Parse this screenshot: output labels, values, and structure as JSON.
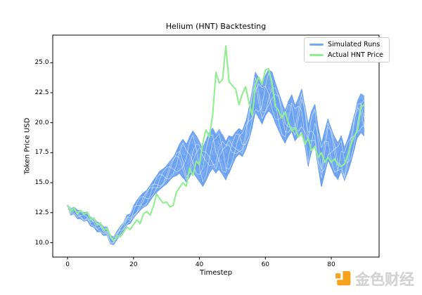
{
  "figure": {
    "title": "Helium (HNT) Backtesting",
    "xlabel": "Timestep",
    "ylabel": "Token Price USD"
  },
  "legend": {
    "items": [
      {
        "label": "Simulated Runs",
        "color": "#74a9f3"
      },
      {
        "label": "Actual HNT Price",
        "color": "#90ee90"
      }
    ]
  },
  "watermark": {
    "text": "金色财经",
    "text_color": "#d2d2d2",
    "logo_color": "#f6a21d"
  },
  "chart_data": {
    "type": "line",
    "title": "Helium (HNT) Backtesting",
    "xlabel": "Timestep",
    "ylabel": "Token Price USD",
    "grid": false,
    "legend_position": "upper right",
    "xlim": [
      -4.5,
      94.5
    ],
    "ylim": [
      8.8,
      27.3
    ],
    "x_ticks": [
      0,
      20,
      40,
      60,
      80
    ],
    "x_tick_labels": [
      "0",
      "20",
      "40",
      "60",
      "80"
    ],
    "y_ticks": [
      10.0,
      12.5,
      15.0,
      17.5,
      20.0,
      22.5,
      25.0
    ],
    "y_tick_labels": [
      "10.0",
      "12.5",
      "15.0",
      "17.5",
      "20.0",
      "22.5",
      "25.0"
    ],
    "x_start": 0,
    "x_step": 1,
    "series": [
      {
        "name": "Simulated Runs",
        "type": "band",
        "color": "#7bacf3",
        "line_color": "#68a0f1",
        "num_runs": 30,
        "lower": [
          13.05,
          12.3,
          12.4,
          12.0,
          12.0,
          11.8,
          11.85,
          11.4,
          11.3,
          10.9,
          10.9,
          10.6,
          10.65,
          9.9,
          9.85,
          10.3,
          10.7,
          10.95,
          11.5,
          11.6,
          12.05,
          12.4,
          12.7,
          12.9,
          13.1,
          13.5,
          13.9,
          14.2,
          14.45,
          14.7,
          14.9,
          15.2,
          15.5,
          15.6,
          15.8,
          15.4,
          15.0,
          15.5,
          15.9,
          15.5,
          15.1,
          14.7,
          15.2,
          15.8,
          16.2,
          15.8,
          16.1,
          15.7,
          15.2,
          15.8,
          16.5,
          17.1,
          17.4,
          17.2,
          17.8,
          18.6,
          19.6,
          20.8,
          20.4,
          19.9,
          20.6,
          21.0,
          20.6,
          20.0,
          19.4,
          18.8,
          18.3,
          18.9,
          19.3,
          18.5,
          18.9,
          19.3,
          18.2,
          16.4,
          17.5,
          18.2,
          16.4,
          14.7,
          15.8,
          16.9,
          16.3,
          15.6,
          15.2,
          15.9,
          15.1,
          15.9,
          16.8,
          17.8,
          18.8,
          19.2,
          18.9
        ],
        "upper": [
          13.2,
          12.85,
          12.95,
          12.7,
          12.65,
          12.5,
          12.55,
          12.1,
          12.0,
          11.7,
          11.6,
          11.3,
          11.3,
          10.6,
          10.45,
          10.95,
          11.35,
          11.65,
          12.3,
          12.45,
          13.1,
          13.5,
          13.9,
          14.15,
          14.35,
          14.75,
          15.15,
          15.55,
          15.95,
          16.15,
          16.4,
          16.75,
          17.1,
          17.6,
          18.2,
          18.6,
          18.2,
          18.8,
          19.3,
          18.9,
          18.4,
          17.9,
          18.5,
          19.2,
          19.6,
          19.1,
          19.5,
          19.0,
          18.4,
          18.9,
          18.8,
          19.2,
          19.5,
          19.3,
          20.1,
          21.2,
          22.6,
          24.2,
          23.8,
          23.2,
          23.9,
          24.4,
          24.2,
          23.3,
          22.5,
          21.7,
          21.1,
          21.8,
          22.3,
          21.4,
          22.0,
          22.8,
          21.4,
          19.8,
          20.9,
          21.5,
          19.6,
          18.2,
          19.3,
          20.3,
          19.6,
          18.8,
          18.3,
          18.9,
          17.9,
          18.6,
          19.5,
          20.6,
          21.8,
          22.4,
          22.2
        ]
      },
      {
        "name": "Actual HNT Price",
        "type": "line",
        "color": "#90ee90",
        "values": [
          13.1,
          12.6,
          12.9,
          12.4,
          12.7,
          12.35,
          12.55,
          11.95,
          12.05,
          11.45,
          11.65,
          11.05,
          11.15,
          10.55,
          10.15,
          10.6,
          10.5,
          10.9,
          11.3,
          11.1,
          11.5,
          11.9,
          11.6,
          12.4,
          12.6,
          12.3,
          13.0,
          14.05,
          13.65,
          13.3,
          13.4,
          13.0,
          13.1,
          14.2,
          14.6,
          15.0,
          14.7,
          16.2,
          15.6,
          16.8,
          16.5,
          18.3,
          19.4,
          18.8,
          20.6,
          24.2,
          23.3,
          23.6,
          26.4,
          23.4,
          23.1,
          22.8,
          21.5,
          22.4,
          23.0,
          21.7,
          20.6,
          23.2,
          23.8,
          23.2,
          24.4,
          24.5,
          23.2,
          21.4,
          21.0,
          20.4,
          20.9,
          20.0,
          19.3,
          19.6,
          18.8,
          19.1,
          18.2,
          18.7,
          17.7,
          18.0,
          17.1,
          17.5,
          16.7,
          17.1,
          16.7,
          17.0,
          16.5,
          16.35,
          16.55,
          17.3,
          18.2,
          18.9,
          19.4,
          21.3,
          21.5
        ]
      }
    ]
  }
}
